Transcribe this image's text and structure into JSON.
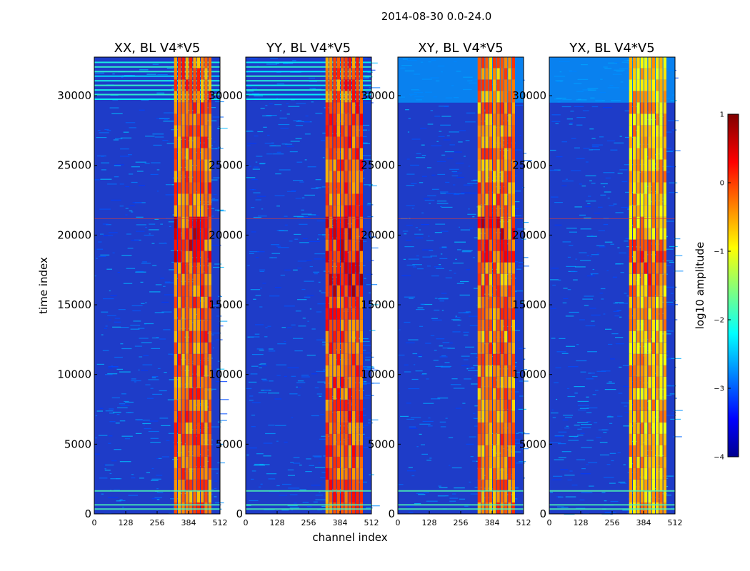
{
  "chart_data": {
    "type": "heatmap",
    "suptitle": "2014-08-30 0.0-24.0",
    "xlabel": "channel index",
    "ylabel": "time index",
    "xlim": [
      0,
      512
    ],
    "ylim": [
      0,
      32767
    ],
    "x_ticks": [
      0,
      128,
      256,
      384,
      512
    ],
    "x_tick_labels": [
      "0",
      "128",
      "256",
      "384",
      "512"
    ],
    "y_ticks": [
      0,
      5000,
      10000,
      15000,
      20000,
      25000,
      30000
    ],
    "y_tick_labels": [
      "0",
      "5000",
      "10000",
      "15000",
      "20000",
      "25000",
      "30000"
    ],
    "panels": [
      {
        "title": "XX, BL V4*V5",
        "band": {
          "start": 325,
          "end": 480,
          "intensity": 0.8
        },
        "hot_region": {
          "from": 18000,
          "to": 21000
        },
        "top_stripes": true
      },
      {
        "title": "YY, BL V4*V5",
        "band": {
          "start": 325,
          "end": 480,
          "intensity": 0.82
        },
        "hot_region": {
          "from": 15000,
          "to": 21000
        },
        "top_stripes": true
      },
      {
        "title": "XY, BL V4*V5",
        "band": {
          "start": 325,
          "end": 480,
          "intensity": 0.78
        },
        "hot_region": {
          "from": 18000,
          "to": 21000
        },
        "top_stripes": false
      },
      {
        "title": "YX, BL V4*V5",
        "band": {
          "start": 325,
          "end": 480,
          "intensity": 0.72
        },
        "hot_region": {
          "from": 15000,
          "to": 19500
        },
        "top_stripes": false
      }
    ],
    "colorbar": {
      "label": "log10 amplitude",
      "range": [
        -4,
        1
      ],
      "ticks": [
        1,
        0,
        -1,
        -2,
        -3,
        -4
      ],
      "tick_labels": [
        "1",
        "0",
        "−1",
        "−2",
        "−3",
        "−4"
      ],
      "colormap": "jet"
    }
  }
}
